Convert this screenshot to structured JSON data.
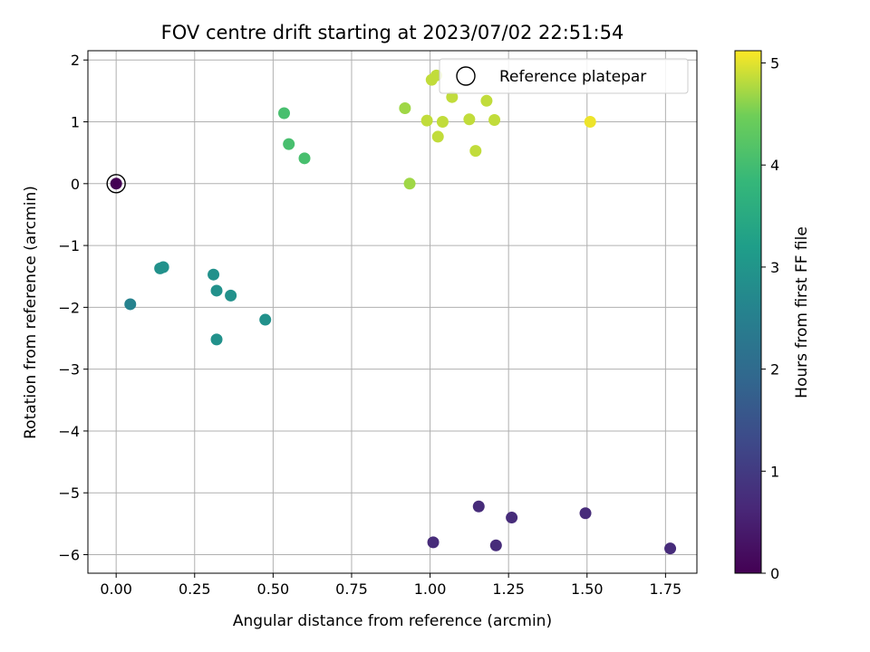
{
  "chart_data": {
    "type": "scatter",
    "title": "FOV centre drift starting at 2023/07/02 22:51:54",
    "xlabel": "Angular distance from reference (arcmin)",
    "ylabel": "Rotation from reference (arcmin)",
    "xlim": [
      -0.09,
      1.85
    ],
    "ylim": [
      -6.3,
      2.15
    ],
    "xticks": [
      0.0,
      0.25,
      0.5,
      0.75,
      1.0,
      1.25,
      1.5,
      1.75
    ],
    "xtick_labels": [
      "0.00",
      "0.25",
      "0.50",
      "0.75",
      "1.00",
      "1.25",
      "1.50",
      "1.75"
    ],
    "yticks": [
      2,
      1,
      0,
      -1,
      -2,
      -3,
      -4,
      -5,
      -6
    ],
    "ytick_labels": [
      "2",
      "1",
      "0",
      "−1",
      "−2",
      "−3",
      "−4",
      "−5",
      "−6"
    ],
    "grid": true,
    "legend": {
      "label": "Reference platepar",
      "position": "upper right"
    },
    "reference_point": {
      "x": 0.0,
      "y": 0.0
    },
    "colorbar": {
      "label": "Hours from first FF file",
      "colormap": "viridis",
      "range": [
        0,
        5.12
      ],
      "ticks": [
        0,
        1,
        2,
        3,
        4,
        5
      ],
      "tick_labels": [
        "0",
        "1",
        "2",
        "3",
        "4",
        "5"
      ]
    },
    "points": [
      {
        "x": 0.0,
        "y": 0.0,
        "c": 0.0
      },
      {
        "x": 1.01,
        "y": -5.8,
        "c": 0.72
      },
      {
        "x": 1.155,
        "y": -5.22,
        "c": 0.72
      },
      {
        "x": 1.21,
        "y": -5.85,
        "c": 0.72
      },
      {
        "x": 1.26,
        "y": -5.4,
        "c": 0.72
      },
      {
        "x": 1.495,
        "y": -5.33,
        "c": 0.72
      },
      {
        "x": 1.765,
        "y": -5.9,
        "c": 0.72
      },
      {
        "x": 0.045,
        "y": -1.95,
        "c": 2.55
      },
      {
        "x": 0.14,
        "y": -1.37,
        "c": 2.9
      },
      {
        "x": 0.15,
        "y": -1.35,
        "c": 2.9
      },
      {
        "x": 0.31,
        "y": -1.47,
        "c": 2.9
      },
      {
        "x": 0.32,
        "y": -1.73,
        "c": 2.9
      },
      {
        "x": 0.365,
        "y": -1.81,
        "c": 2.9
      },
      {
        "x": 0.32,
        "y": -2.52,
        "c": 2.9
      },
      {
        "x": 0.475,
        "y": -2.2,
        "c": 2.9
      },
      {
        "x": 0.535,
        "y": 1.14,
        "c": 4.05
      },
      {
        "x": 0.55,
        "y": 0.64,
        "c": 4.05
      },
      {
        "x": 0.6,
        "y": 0.41,
        "c": 4.05
      },
      {
        "x": 0.92,
        "y": 1.22,
        "c": 4.7
      },
      {
        "x": 0.935,
        "y": 0.0,
        "c": 4.7
      },
      {
        "x": 0.99,
        "y": 1.02,
        "c": 4.85
      },
      {
        "x": 1.005,
        "y": 1.68,
        "c": 4.85
      },
      {
        "x": 1.02,
        "y": 1.75,
        "c": 4.85
      },
      {
        "x": 1.025,
        "y": 0.76,
        "c": 4.85
      },
      {
        "x": 1.04,
        "y": 1.0,
        "c": 4.85
      },
      {
        "x": 1.07,
        "y": 1.4,
        "c": 4.85
      },
      {
        "x": 1.125,
        "y": 1.04,
        "c": 4.85
      },
      {
        "x": 1.145,
        "y": 0.53,
        "c": 4.85
      },
      {
        "x": 1.18,
        "y": 1.34,
        "c": 4.85
      },
      {
        "x": 1.205,
        "y": 1.03,
        "c": 4.85
      },
      {
        "x": 1.51,
        "y": 1.0,
        "c": 5.05
      }
    ]
  }
}
